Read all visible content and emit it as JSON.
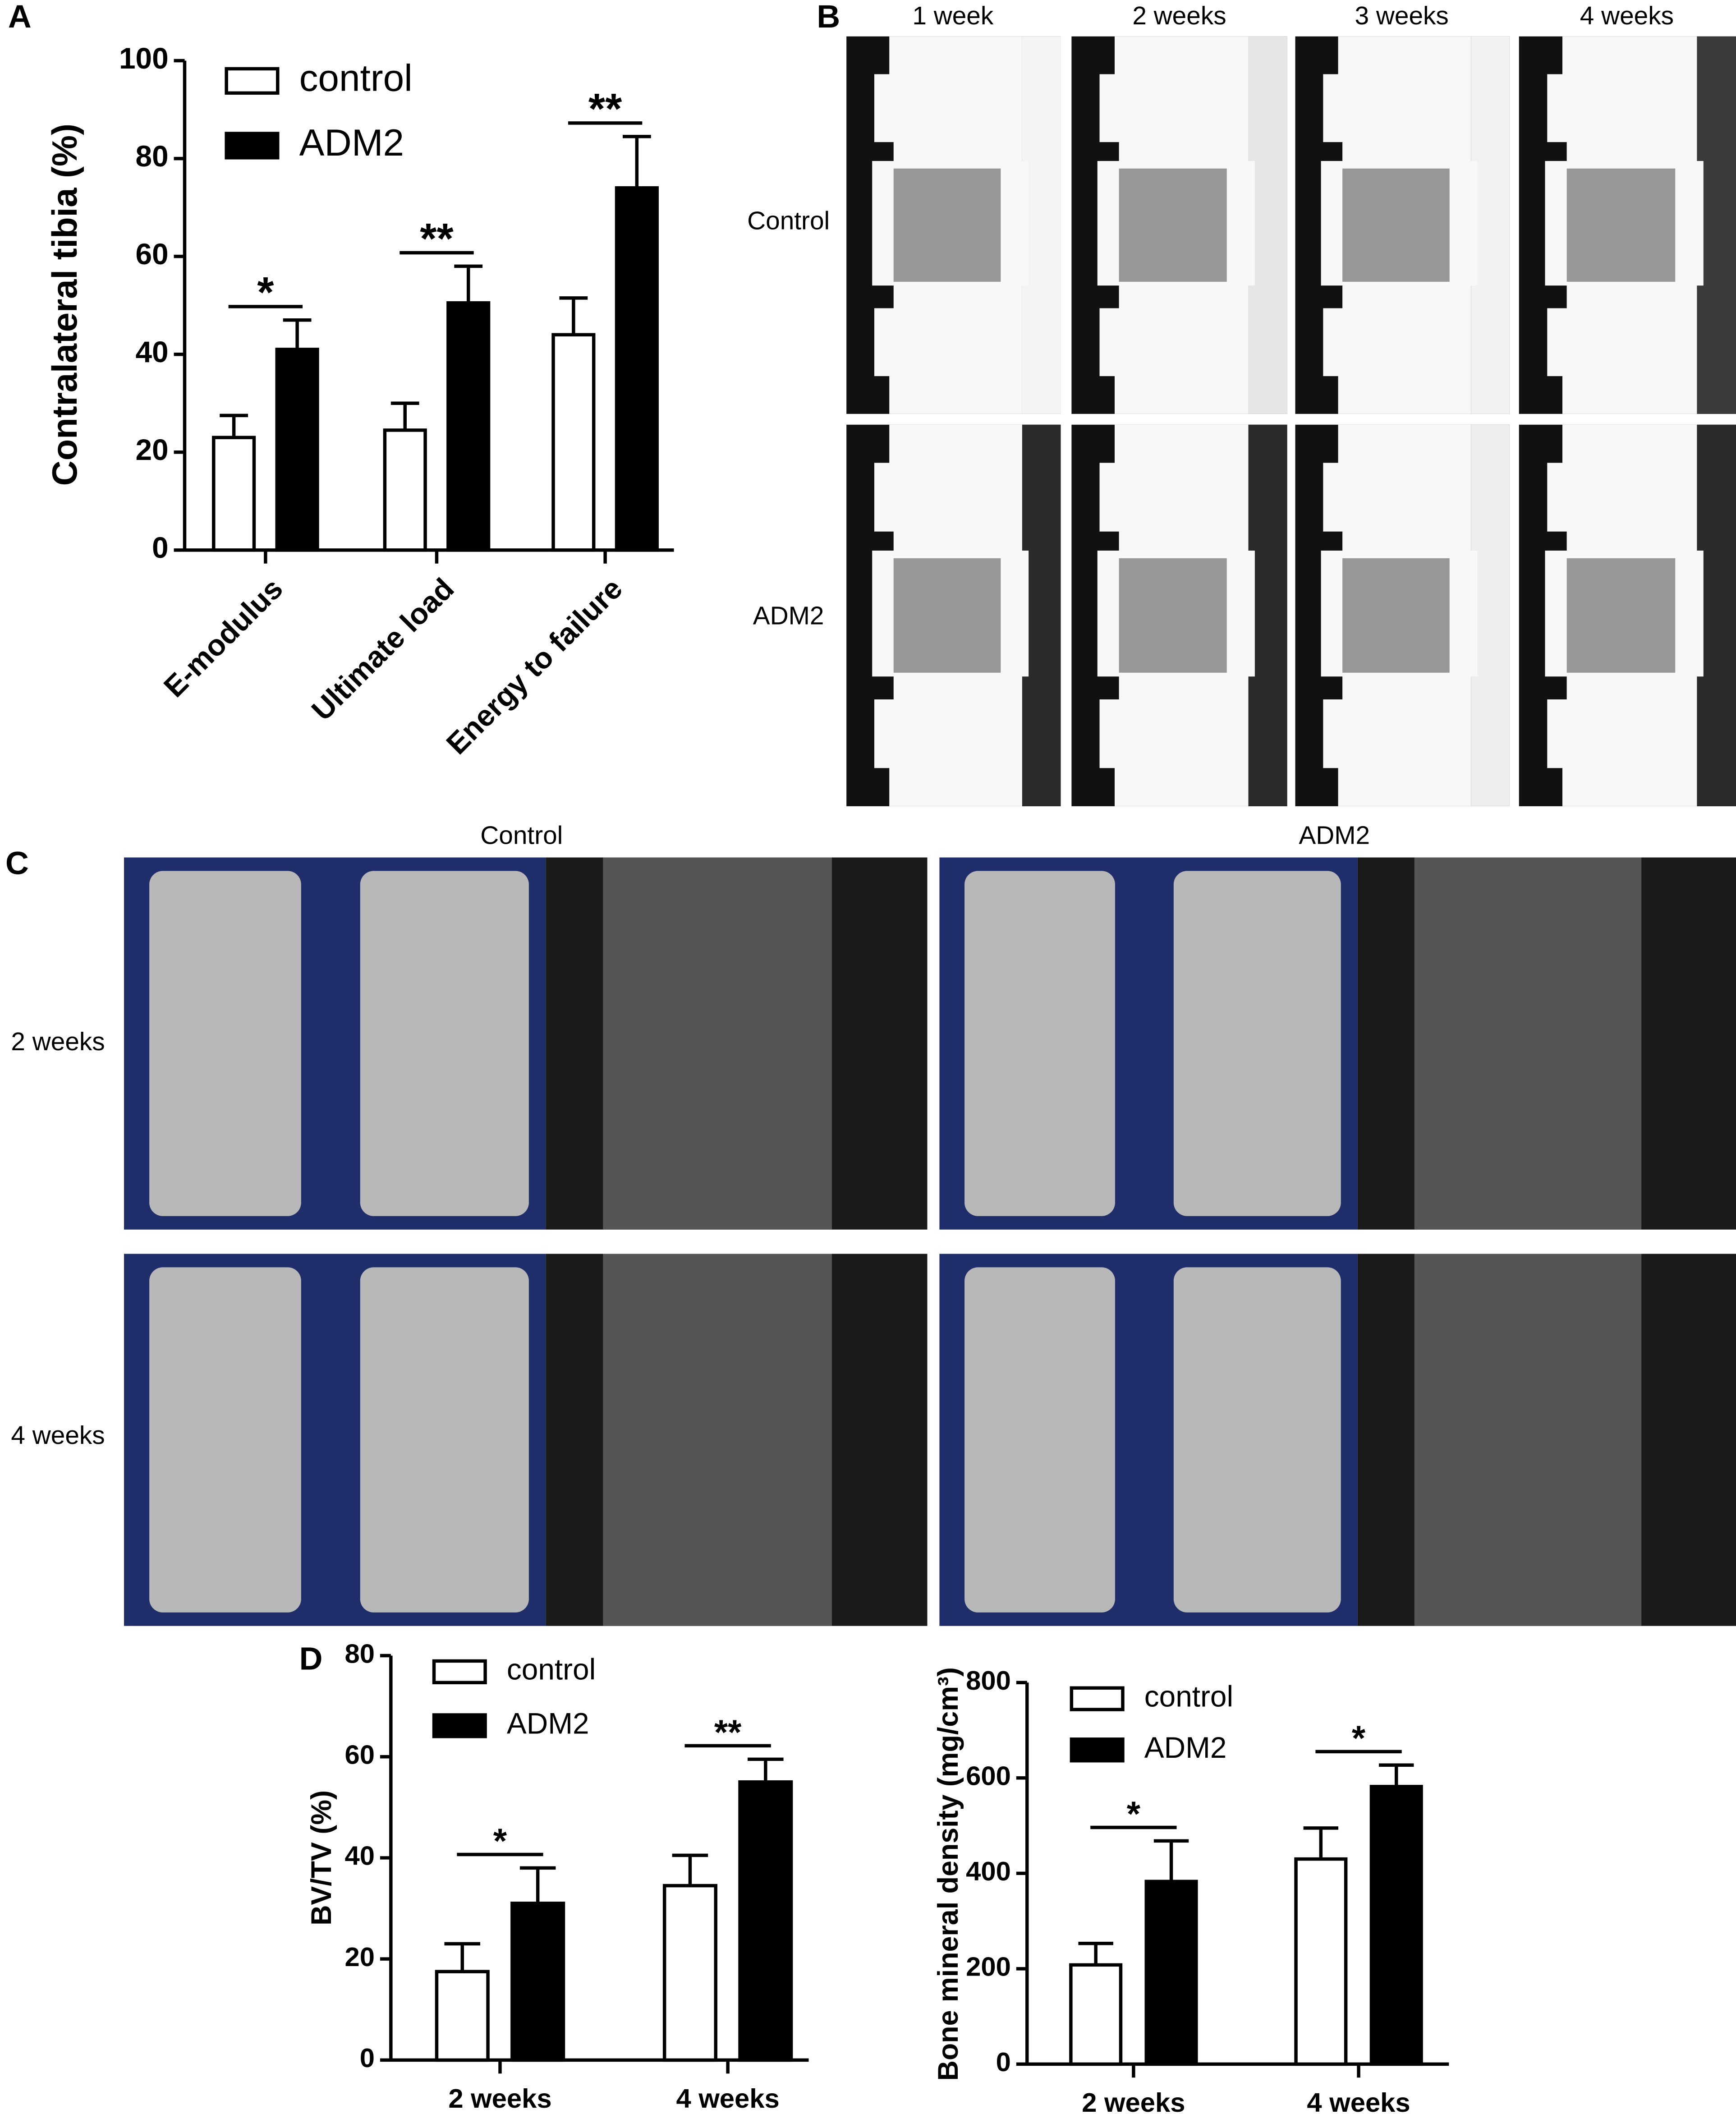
{
  "figure": {
    "panel_labels": [
      "A",
      "B",
      "C",
      "D"
    ],
    "b_columns": [
      "1 week",
      "2 weeks",
      "3 weeks",
      "4 weeks"
    ],
    "b_rows": [
      "Control",
      "ADM2"
    ],
    "c_columns": [
      "Control",
      "ADM2"
    ],
    "c_rows": [
      "2 weeks",
      "4 weeks"
    ]
  },
  "chart_data": [
    {
      "type": "bar",
      "ylabel": "Contralateral tibia (%)",
      "categories": [
        "E-modulus",
        "Ultimate load",
        "Energy to failure"
      ],
      "series": [
        {
          "name": "control",
          "color": "#ffffff",
          "values": [
            23,
            24.5,
            44
          ],
          "errors": [
            4.5,
            5.5,
            7.5
          ]
        },
        {
          "name": "ADM2",
          "color": "#000000",
          "values": [
            41,
            50.5,
            74
          ],
          "errors": [
            6,
            7.5,
            10.5
          ]
        }
      ],
      "annotations": [
        "*",
        "**",
        "**"
      ],
      "ylim": [
        0,
        100
      ],
      "yticks": [
        0,
        20,
        40,
        60,
        80,
        100
      ],
      "legend": "upper left"
    },
    {
      "type": "bar",
      "ylabel": "BV/TV (%)",
      "categories": [
        "2 weeks",
        "4 weeks"
      ],
      "series": [
        {
          "name": "control",
          "color": "#ffffff",
          "values": [
            17.5,
            34.5
          ],
          "errors": [
            5.5,
            6
          ]
        },
        {
          "name": "ADM2",
          "color": "#000000",
          "values": [
            31,
            55
          ],
          "errors": [
            7,
            4.5
          ]
        }
      ],
      "annotations": [
        "*",
        "**"
      ],
      "ylim": [
        0,
        80
      ],
      "yticks": [
        0,
        20,
        40,
        60,
        80
      ],
      "legend": "upper left"
    },
    {
      "type": "bar",
      "ylabel": "Bone mineral density (mg/cm³)",
      "categories": [
        "2 weeks",
        "4 weeks"
      ],
      "series": [
        {
          "name": "control",
          "color": "#ffffff",
          "values": [
            208,
            430
          ],
          "errors": [
            45,
            65
          ]
        },
        {
          "name": "ADM2",
          "color": "#000000",
          "values": [
            383,
            582
          ],
          "errors": [
            85,
            45
          ]
        }
      ],
      "annotations": [
        "*",
        "*"
      ],
      "ylim": [
        0,
        800
      ],
      "yticks": [
        0,
        200,
        400,
        600,
        800
      ],
      "legend": "upper left"
    }
  ]
}
